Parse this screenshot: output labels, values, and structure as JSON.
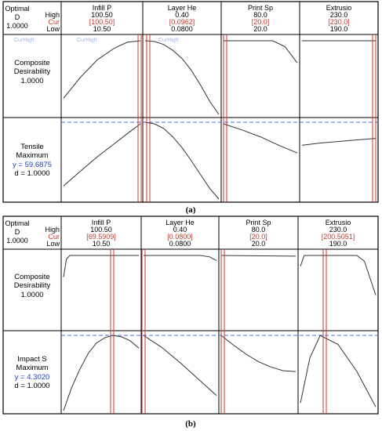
{
  "chart_data": [
    {
      "type": "line",
      "caption": "(a)",
      "optimal": {
        "label": "Optimal",
        "d_label": "D",
        "d_value": "1.0000"
      },
      "row_labels": {
        "high": "High",
        "cur": "Cur",
        "low": "Low"
      },
      "factors": [
        {
          "name": "Infill P",
          "high": "100.50",
          "cur": "[100.50]",
          "low": "10.50",
          "high_value": 100.5,
          "cur_value": 100.5,
          "low_value": 10.5
        },
        {
          "name": "Layer He",
          "high": "0.40",
          "cur": "[0.0962]",
          "low": "0.0800",
          "high_value": 0.4,
          "cur_value": 0.0962,
          "low_value": 0.08
        },
        {
          "name": "Print Sp",
          "high": "80.0",
          "cur": "[20.0]",
          "low": "20.0",
          "high_value": 80.0,
          "cur_value": 20.0,
          "low_value": 20.0
        },
        {
          "name": "Extrusio",
          "high": "230.0",
          "cur": "[230.0]",
          "low": "190.0",
          "high_value": 230.0,
          "cur_value": 230.0,
          "low_value": 190.0
        }
      ],
      "responses": [
        {
          "label": "Composite",
          "sublabel": "Desirability",
          "value_line": "1.0000",
          "d_line": "",
          "top_labels": [
            "CurHigh",
            "CurHigh",
            "CurHigh"
          ],
          "curves": [
            [
              [
                10.5,
                0.22
              ],
              [
                30,
                0.5
              ],
              [
                50,
                0.74
              ],
              [
                70,
                0.9
              ],
              [
                85,
                0.98
              ],
              [
                100.5,
                1.0
              ]
            ],
            [
              [
                0.08,
                1.0
              ],
              [
                0.12,
                0.99
              ],
              [
                0.16,
                0.95
              ],
              [
                0.2,
                0.87
              ],
              [
                0.24,
                0.76
              ],
              [
                0.28,
                0.6
              ],
              [
                0.32,
                0.4
              ],
              [
                0.36,
                0.18
              ],
              [
                0.4,
                0.0
              ]
            ],
            [
              [
                20,
                1.0
              ],
              [
                40,
                1.0
              ],
              [
                60,
                1.0
              ],
              [
                70,
                0.92
              ],
              [
                80,
                0.7
              ]
            ],
            [
              [
                190,
                1.0
              ],
              [
                230,
                1.0
              ]
            ]
          ]
        },
        {
          "label": "Tensile",
          "sublabel": "Maximum",
          "value_line": "y = 59.6875",
          "d_line": "d = 1.0000",
          "top_labels": [],
          "curves": [
            [
              [
                10.5,
                0.17
              ],
              [
                30,
                0.36
              ],
              [
                50,
                0.55
              ],
              [
                70,
                0.72
              ],
              [
                85,
                0.85
              ],
              [
                100.5,
                0.98
              ]
            ],
            [
              [
                0.08,
                1.0
              ],
              [
                0.12,
                0.98
              ],
              [
                0.16,
                0.92
              ],
              [
                0.2,
                0.81
              ],
              [
                0.24,
                0.67
              ],
              [
                0.28,
                0.5
              ],
              [
                0.32,
                0.32
              ],
              [
                0.36,
                0.14
              ],
              [
                0.4,
                0.0
              ]
            ],
            [
              [
                20,
                0.98
              ],
              [
                35,
                0.9
              ],
              [
                50,
                0.81
              ],
              [
                65,
                0.7
              ],
              [
                80,
                0.6
              ]
            ],
            [
              [
                190,
                0.7
              ],
              [
                200,
                0.73
              ],
              [
                210,
                0.75
              ],
              [
                220,
                0.77
              ],
              [
                230,
                0.79
              ]
            ]
          ]
        }
      ]
    },
    {
      "type": "line",
      "caption": "(b)",
      "optimal": {
        "label": "Optimal",
        "d_label": "D",
        "d_value": "1.0000"
      },
      "row_labels": {
        "high": "High",
        "cur": "Cur",
        "low": "Low"
      },
      "factors": [
        {
          "name": "Infill P",
          "high": "100.50",
          "cur": "[69.5909]",
          "low": "10.50",
          "high_value": 100.5,
          "cur_value": 69.5909,
          "low_value": 10.5
        },
        {
          "name": "Layer He",
          "high": "0.40",
          "cur": "[0.0800]",
          "low": "0.0800",
          "high_value": 0.4,
          "cur_value": 0.08,
          "low_value": 0.08
        },
        {
          "name": "Print Sp",
          "high": "80.0",
          "cur": "[20.0]",
          "low": "20.0",
          "high_value": 80.0,
          "cur_value": 20.0,
          "low_value": 20.0
        },
        {
          "name": "Extrusio",
          "high": "230.0",
          "cur": "[200.5051]",
          "low": "190.0",
          "high_value": 230.0,
          "cur_value": 200.5051,
          "low_value": 190.0
        }
      ],
      "responses": [
        {
          "label": "Composite",
          "sublabel": "Desirability",
          "value_line": "1.0000",
          "d_line": "",
          "top_labels": [],
          "curves": [
            [
              [
                10.5,
                0.7
              ],
              [
                14,
                0.95
              ],
              [
                18,
                1.0
              ],
              [
                100.5,
                1.0
              ]
            ],
            [
              [
                0.08,
                1.0
              ],
              [
                0.33,
                1.0
              ],
              [
                0.37,
                0.98
              ],
              [
                0.4,
                0.93
              ]
            ],
            [
              [
                20,
                1.0
              ],
              [
                80,
                0.99
              ]
            ],
            [
              [
                190,
                0.85
              ],
              [
                192,
                1.0
              ],
              [
                220,
                1.0
              ],
              [
                224,
                0.92
              ],
              [
                230,
                0.45
              ]
            ]
          ]
        },
        {
          "label": "Impact S",
          "sublabel": "Maximum",
          "value_line": "y = 4.3020",
          "d_line": "d = 1.0000",
          "top_labels": [],
          "curves": [
            [
              [
                10.5,
                0.0
              ],
              [
                20,
                0.3
              ],
              [
                30,
                0.55
              ],
              [
                40,
                0.76
              ],
              [
                50,
                0.9
              ],
              [
                60,
                0.97
              ],
              [
                69.6,
                1.0
              ],
              [
                80,
                0.98
              ],
              [
                90,
                0.93
              ],
              [
                100.5,
                0.83
              ]
            ],
            [
              [
                0.08,
                1.0
              ],
              [
                0.12,
                0.92
              ],
              [
                0.16,
                0.84
              ],
              [
                0.2,
                0.74
              ],
              [
                0.24,
                0.64
              ],
              [
                0.28,
                0.53
              ],
              [
                0.32,
                0.42
              ],
              [
                0.36,
                0.31
              ],
              [
                0.4,
                0.2
              ]
            ],
            [
              [
                20,
                1.0
              ],
              [
                30,
                0.87
              ],
              [
                40,
                0.75
              ],
              [
                50,
                0.65
              ],
              [
                60,
                0.58
              ],
              [
                70,
                0.53
              ],
              [
                80,
                0.52
              ]
            ],
            [
              [
                190,
                0.1
              ],
              [
                195,
                0.7
              ],
              [
                200.5,
                1.0
              ],
              [
                210,
                0.88
              ],
              [
                220,
                0.52
              ],
              [
                230,
                0.05
              ]
            ]
          ]
        }
      ]
    }
  ]
}
